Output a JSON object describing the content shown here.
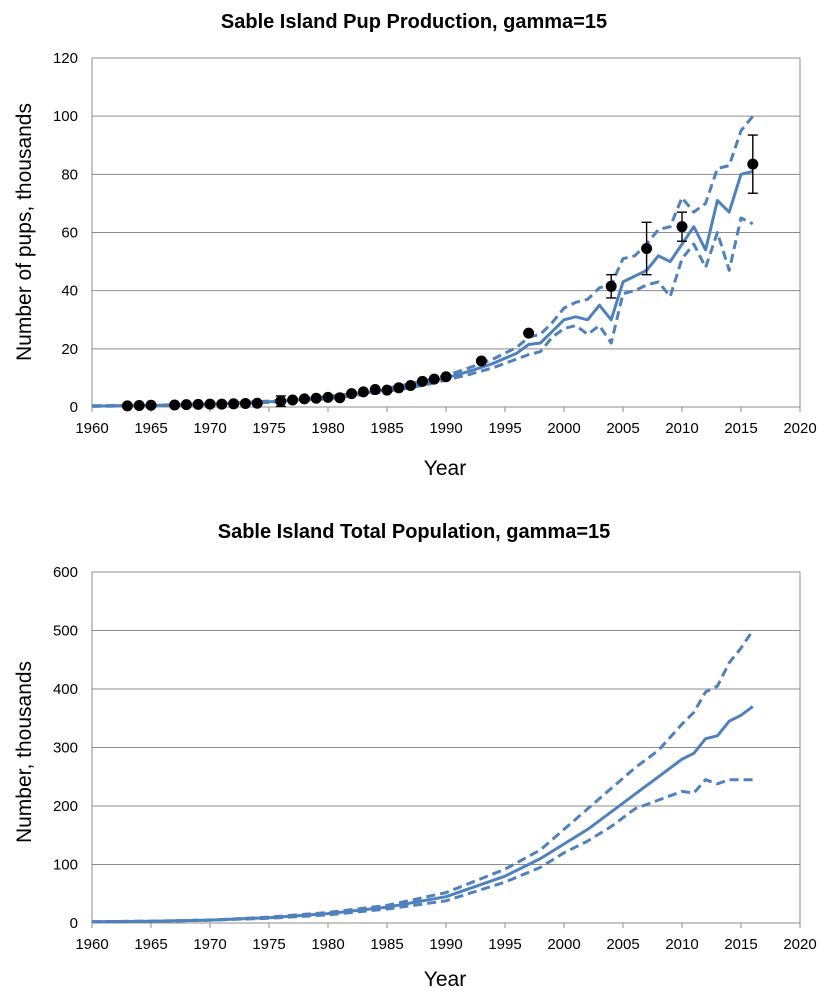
{
  "chart_data": [
    {
      "type": "line",
      "title": "Sable Island Pup Production, gamma=15",
      "xlabel": "Year",
      "ylabel": "Number of pups, thousands",
      "xlim": [
        1960,
        2020
      ],
      "ylim": [
        0,
        120
      ],
      "xticks": [
        "1960",
        "1965",
        "1970",
        "1975",
        "1980",
        "1985",
        "1990",
        "1995",
        "2000",
        "2005",
        "2010",
        "2015",
        "2020"
      ],
      "yticks": [
        "0",
        "20",
        "40",
        "60",
        "80",
        "100",
        "120"
      ],
      "grid": true,
      "series": [
        {
          "style": "solid",
          "x": [
            1960,
            1962,
            1964,
            1966,
            1968,
            1970,
            1972,
            1974,
            1976,
            1978,
            1980,
            1982,
            1984,
            1986,
            1988,
            1990,
            1992,
            1994,
            1996,
            1997,
            1998,
            1999,
            2000,
            2001,
            2002,
            2003,
            2004,
            2005,
            2006,
            2007,
            2008,
            2009,
            2010,
            2011,
            2012,
            2013,
            2014,
            2015,
            2016
          ],
          "y": [
            0.3,
            0.4,
            0.5,
            0.6,
            0.8,
            1.0,
            1.3,
            1.6,
            2.0,
            2.6,
            3.3,
            4.2,
            5.3,
            6.6,
            8.1,
            10.0,
            12.3,
            15.0,
            18.5,
            21.5,
            22.0,
            26.0,
            30.0,
            31.0,
            30.0,
            35.0,
            30.0,
            43.0,
            45.0,
            47.0,
            52.0,
            50.0,
            56.0,
            62.0,
            54.0,
            71.0,
            67.0,
            80.0,
            81.0
          ]
        },
        {
          "style": "dashed",
          "x": [
            1960,
            1962,
            1964,
            1966,
            1968,
            1970,
            1972,
            1974,
            1976,
            1978,
            1980,
            1982,
            1984,
            1986,
            1988,
            1990,
            1992,
            1994,
            1996,
            1997,
            1998,
            1999,
            2000,
            2001,
            2002,
            2003,
            2004,
            2005,
            2006,
            2007,
            2008,
            2009,
            2010,
            2011,
            2012,
            2013,
            2014,
            2015,
            2016
          ],
          "y": [
            0.4,
            0.5,
            0.6,
            0.7,
            0.9,
            1.1,
            1.4,
            1.8,
            2.3,
            2.9,
            3.6,
            4.6,
            5.8,
            7.2,
            8.9,
            10.8,
            13.5,
            16.5,
            20.5,
            24.0,
            25.0,
            29.0,
            34.0,
            36.0,
            37.0,
            41.0,
            42.0,
            51.0,
            52.0,
            56.0,
            61.0,
            62.0,
            72.0,
            67.0,
            70.0,
            82.0,
            83.0,
            95.0,
            100.0
          ]
        },
        {
          "style": "dashed",
          "x": [
            1960,
            1962,
            1964,
            1966,
            1968,
            1970,
            1972,
            1974,
            1976,
            1978,
            1980,
            1982,
            1984,
            1986,
            1988,
            1990,
            1992,
            1994,
            1996,
            1997,
            1998,
            1999,
            2000,
            2001,
            2002,
            2003,
            2004,
            2005,
            2006,
            2007,
            2008,
            2009,
            2010,
            2011,
            2012,
            2013,
            2014,
            2015,
            2016
          ],
          "y": [
            0.2,
            0.3,
            0.4,
            0.5,
            0.7,
            0.9,
            1.1,
            1.4,
            1.8,
            2.3,
            2.9,
            3.8,
            4.8,
            6.0,
            7.4,
            9.2,
            11.2,
            13.5,
            16.5,
            18.0,
            19.0,
            24.0,
            27.0,
            28.0,
            25.0,
            28.0,
            22.0,
            39.0,
            40.0,
            42.0,
            43.0,
            38.0,
            51.0,
            56.0,
            48.0,
            60.0,
            47.0,
            65.0,
            63.0
          ]
        }
      ],
      "observations": [
        {
          "x": 1963,
          "y": 0.4
        },
        {
          "x": 1964,
          "y": 0.5
        },
        {
          "x": 1965,
          "y": 0.6
        },
        {
          "x": 1967,
          "y": 0.7
        },
        {
          "x": 1968,
          "y": 0.8
        },
        {
          "x": 1969,
          "y": 0.9
        },
        {
          "x": 1970,
          "y": 1.0
        },
        {
          "x": 1971,
          "y": 1.0
        },
        {
          "x": 1972,
          "y": 1.1
        },
        {
          "x": 1973,
          "y": 1.2
        },
        {
          "x": 1974,
          "y": 1.3
        },
        {
          "x": 1976,
          "y": 2.0,
          "err": 1.8
        },
        {
          "x": 1977,
          "y": 2.4
        },
        {
          "x": 1978,
          "y": 2.8
        },
        {
          "x": 1979,
          "y": 3.0
        },
        {
          "x": 1980,
          "y": 3.3
        },
        {
          "x": 1981,
          "y": 3.2
        },
        {
          "x": 1982,
          "y": 4.6
        },
        {
          "x": 1983,
          "y": 5.2
        },
        {
          "x": 1984,
          "y": 6.0
        },
        {
          "x": 1985,
          "y": 5.8
        },
        {
          "x": 1986,
          "y": 6.6
        },
        {
          "x": 1987,
          "y": 7.4
        },
        {
          "x": 1988,
          "y": 8.8
        },
        {
          "x": 1989,
          "y": 9.6
        },
        {
          "x": 1990,
          "y": 10.4
        },
        {
          "x": 1993,
          "y": 15.8
        },
        {
          "x": 1997,
          "y": 25.4
        },
        {
          "x": 2004,
          "y": 41.5,
          "err": 4.0
        },
        {
          "x": 2007,
          "y": 54.5,
          "err": 9.0
        },
        {
          "x": 2010,
          "y": 62.0,
          "err": 5.0
        },
        {
          "x": 2016,
          "y": 83.5,
          "err": 10.0
        }
      ]
    },
    {
      "type": "line",
      "title": "Sable Island Total Population, gamma=15",
      "xlabel": "Year",
      "ylabel": "Number, thousands",
      "xlim": [
        1960,
        2020
      ],
      "ylim": [
        0,
        600
      ],
      "xticks": [
        "1960",
        "1965",
        "1970",
        "1975",
        "1980",
        "1985",
        "1990",
        "1995",
        "2000",
        "2005",
        "2010",
        "2015",
        "2020"
      ],
      "yticks": [
        "0",
        "100",
        "200",
        "300",
        "400",
        "500",
        "600"
      ],
      "grid": true,
      "series": [
        {
          "style": "solid",
          "x": [
            1960,
            1965,
            1970,
            1975,
            1980,
            1985,
            1990,
            1995,
            1998,
            2000,
            2002,
            2004,
            2006,
            2008,
            2010,
            2011,
            2012,
            2013,
            2014,
            2015,
            2016
          ],
          "y": [
            2,
            3,
            5,
            9,
            16,
            27,
            45,
            80,
            110,
            135,
            160,
            190,
            220,
            250,
            280,
            290,
            315,
            320,
            345,
            355,
            370
          ]
        },
        {
          "style": "dashed",
          "x": [
            1960,
            1965,
            1970,
            1975,
            1980,
            1985,
            1990,
            1995,
            1998,
            2000,
            2002,
            2004,
            2006,
            2008,
            2010,
            2011,
            2012,
            2013,
            2014,
            2015,
            2016
          ],
          "y": [
            2,
            3,
            5,
            10,
            18,
            30,
            52,
            92,
            125,
            160,
            195,
            230,
            265,
            295,
            340,
            360,
            395,
            405,
            445,
            470,
            500
          ]
        },
        {
          "style": "dashed",
          "x": [
            1960,
            1965,
            1970,
            1975,
            1980,
            1985,
            1990,
            1995,
            1998,
            2000,
            2002,
            2004,
            2006,
            2008,
            2010,
            2011,
            2012,
            2013,
            2014,
            2015,
            2016
          ],
          "y": [
            2,
            3,
            5,
            8,
            14,
            24,
            38,
            70,
            95,
            120,
            140,
            165,
            195,
            210,
            225,
            222,
            245,
            238,
            245,
            245,
            245
          ]
        }
      ]
    }
  ]
}
